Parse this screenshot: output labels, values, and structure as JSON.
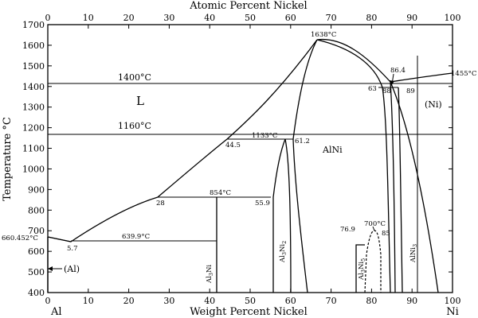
{
  "chart_data": {
    "type": "phase-diagram",
    "top_axis": {
      "label": "Atomic Percent Nickel",
      "ticks": [
        "0",
        "10",
        "20",
        "30",
        "40",
        "50",
        "60",
        "70",
        "80",
        "90",
        "100"
      ],
      "range": [
        0,
        100
      ]
    },
    "bottom_axis": {
      "label": "Weight Percent Nickel",
      "ticks": [
        "0",
        "10",
        "20",
        "30",
        "40",
        "50",
        "60",
        "70",
        "80",
        "90",
        "100"
      ],
      "range": [
        0,
        100
      ],
      "end_left": "Al",
      "end_right": "Ni"
    },
    "y_axis": {
      "label": "Temperature °C",
      "ticks": [
        "400",
        "500",
        "600",
        "700",
        "800",
        "900",
        "1000",
        "1100",
        "1200",
        "1300",
        "1400",
        "1500",
        "1600",
        "1700"
      ],
      "range": [
        400,
        1700
      ]
    },
    "isotherms": [
      {
        "label": "1400°C",
        "temp": 1400
      },
      {
        "label": "1160°C",
        "temp": 1160
      }
    ],
    "phase_labels": {
      "liquid": "L",
      "al_solid": "(Al)",
      "ni_solid": "(Ni)",
      "alni": "AlNi",
      "al3ni": [
        "Al",
        "3",
        "Ni"
      ],
      "al3ni2": [
        "Al",
        "3",
        "Ni",
        "2"
      ],
      "al3ni5": [
        "Al",
        "3",
        "Ni",
        "5"
      ],
      "alni3": [
        "AlNi",
        "3"
      ]
    },
    "points": {
      "alni_max": "1638°C",
      "ni_melt": "1455°C",
      "al_melt": "660.452°C",
      "peritectic_1133": "1133°C",
      "peritectic_854": "854°C",
      "eutectic_639": "639.9°C",
      "al3ni5_700": "700°C",
      "c_5_7": "5.7",
      "c_28": "28",
      "c_44_5": "44.5",
      "c_55_9": "55.9",
      "c_61_2": "61.2",
      "c_63": "63",
      "c_86_4": "86.4",
      "c_88": "88",
      "c_89": "89",
      "c_76_9": "76.9",
      "c_85": "85"
    }
  }
}
